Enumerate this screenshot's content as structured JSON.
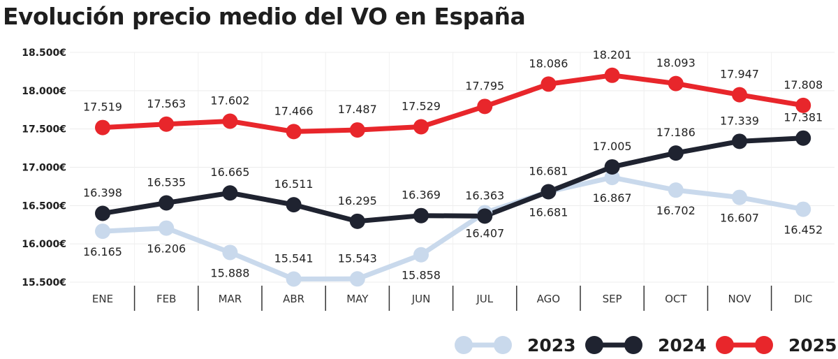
{
  "chart_data": {
    "type": "line",
    "title": "Evolución precio medio del VO en España",
    "categories": [
      "ENE",
      "FEB",
      "MAR",
      "ABR",
      "MAY",
      "JUN",
      "JUL",
      "AGO",
      "SEP",
      "OCT",
      "NOV",
      "DIC"
    ],
    "ylim": [
      15500,
      18500
    ],
    "yticks": [
      15500,
      16000,
      16500,
      17000,
      17500,
      18000,
      18500
    ],
    "ytick_labels": [
      "15.500€",
      "16.000€",
      "16.500€",
      "17.000€",
      "17.500€",
      "18.000€",
      "18.500€"
    ],
    "grid": true,
    "legend_position": "bottom-right",
    "series": [
      {
        "name": "2023",
        "color": "#c9d9ec",
        "values": [
          16165,
          16206,
          15888,
          15541,
          15543,
          15858,
          16407,
          16681,
          16867,
          16702,
          16607,
          16452
        ],
        "labels": [
          "16.165",
          "16.206",
          "15.888",
          "15.541",
          "15.543",
          "15.858",
          "16.407",
          "16.681",
          "16.867",
          "16.702",
          "16.607",
          "16.452"
        ]
      },
      {
        "name": "2024",
        "color": "#1f2330",
        "values": [
          16398,
          16535,
          16665,
          16511,
          16295,
          16369,
          16363,
          16681,
          17005,
          17186,
          17339,
          17381
        ],
        "labels": [
          "16.398",
          "16.535",
          "16.665",
          "16.511",
          "16.295",
          "16.369",
          "16.363",
          "16.681",
          "17.005",
          "17.186",
          "17.339",
          "17.381"
        ]
      },
      {
        "name": "2025",
        "color": "#e8262b",
        "values": [
          17519,
          17563,
          17602,
          17466,
          17487,
          17529,
          17795,
          18086,
          18201,
          18093,
          17947,
          17808
        ],
        "labels": [
          "17.519",
          "17.563",
          "17.602",
          "17.466",
          "17.487",
          "17.529",
          "17.795",
          "18.086",
          "18.201",
          "18.093",
          "17.947",
          "17.808"
        ]
      }
    ]
  }
}
